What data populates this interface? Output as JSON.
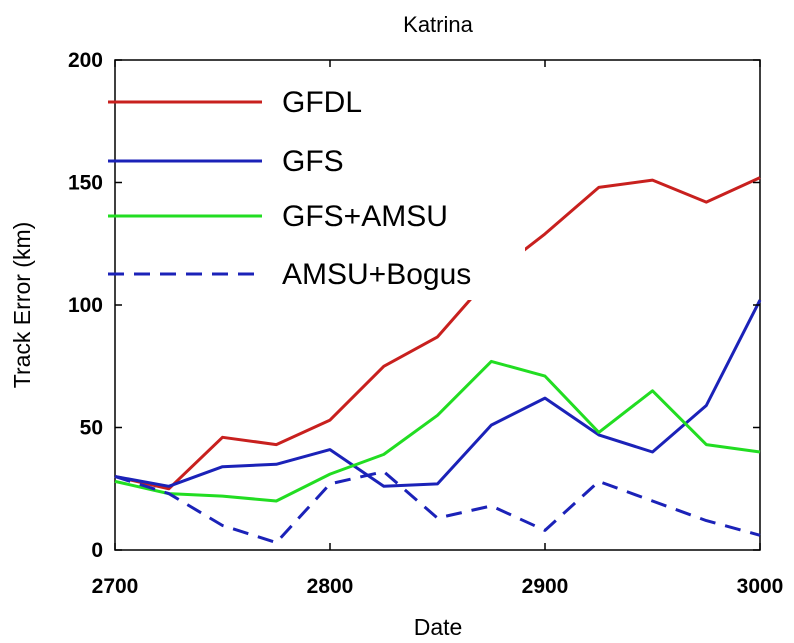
{
  "chart_data": {
    "type": "line",
    "title": "Katrina",
    "xlabel": "Date",
    "ylabel": "Track Error (km)",
    "xlim": [
      2700,
      3000
    ],
    "ylim": [
      0,
      200
    ],
    "xticks": [
      2700,
      2800,
      2900,
      3000
    ],
    "yticks": [
      0,
      50,
      100,
      150,
      200
    ],
    "grid": false,
    "legend_position": "top-left",
    "x": [
      2700,
      2725,
      2750,
      2775,
      2800,
      2825,
      2850,
      2875,
      2900,
      2925,
      2950,
      2975,
      3000
    ],
    "series": [
      {
        "name": "GFDL",
        "color": "#c8201e",
        "dash": "solid",
        "values": [
          30,
          25,
          46,
          43,
          53,
          75,
          87,
          112,
          129,
          148,
          151,
          142,
          152
        ]
      },
      {
        "name": "GFS",
        "color": "#1b22b8",
        "dash": "solid",
        "values": [
          30,
          26,
          34,
          35,
          41,
          26,
          27,
          51,
          62,
          47,
          40,
          59,
          102
        ]
      },
      {
        "name": "GFS+AMSU",
        "color": "#22dd22",
        "dash": "solid",
        "values": [
          28,
          23,
          22,
          20,
          31,
          39,
          55,
          77,
          71,
          48,
          65,
          43,
          40
        ]
      },
      {
        "name": "AMSU+Bogus",
        "color": "#1b22b8",
        "dash": "dashed",
        "values": [
          30,
          23,
          10,
          3,
          27,
          32,
          13,
          18,
          8,
          28,
          20,
          12,
          6
        ]
      }
    ]
  }
}
